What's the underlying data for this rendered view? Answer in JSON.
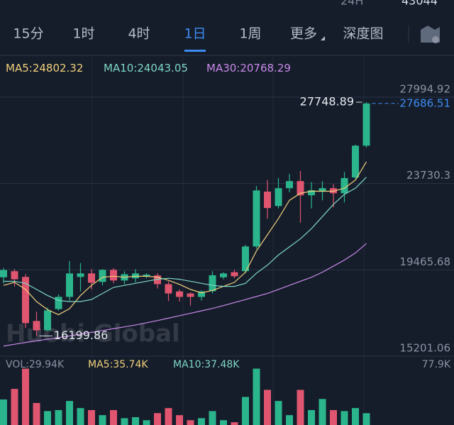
{
  "header": {
    "period_label": "24H",
    "period_value": "43044"
  },
  "tabs": [
    "15分",
    "1时",
    "4时",
    "1日",
    "1周",
    "更多",
    "深度图"
  ],
  "active_tab": 3,
  "watermark": "Huobi Global",
  "chart_data": {
    "type": "candlestick",
    "up_color": "#2bb58c",
    "down_color": "#e0556f",
    "open": [
      19100,
      19400,
      19115,
      16940,
      16480,
      17530,
      18130,
      19115,
      19290,
      18870,
      19466,
      18940,
      19050,
      19150,
      19190,
      18760,
      18400,
      18300,
      18130,
      18410,
      19100,
      19350,
      19400,
      20620,
      23330,
      22620,
      23500,
      23850,
      23150,
      23330,
      23500,
      23250,
      24030,
      25600
    ],
    "high": [
      19560,
      19500,
      19250,
      17400,
      17600,
      18250,
      19900,
      19800,
      19500,
      19500,
      19550,
      19400,
      19500,
      19300,
      19300,
      18900,
      18500,
      18350,
      18450,
      19400,
      19350,
      19470,
      20700,
      23600,
      23900,
      24000,
      24200,
      24350,
      23800,
      23850,
      23700,
      24300,
      25650,
      27748.89
    ],
    "low": [
      18800,
      18650,
      16600,
      16199.86,
      16450,
      17450,
      17950,
      18400,
      18500,
      18700,
      18800,
      18750,
      18850,
      19050,
      18550,
      17920,
      17900,
      17700,
      17950,
      18300,
      19000,
      19050,
      19300,
      20500,
      22000,
      22500,
      23300,
      21800,
      22500,
      22900,
      22550,
      22800,
      23950,
      25500
    ],
    "close": [
      19460,
      19000,
      16834,
      16480,
      17465,
      18132,
      19290,
      19290,
      18830,
      19466,
      18940,
      19250,
      19290,
      19230,
      18760,
      18300,
      18130,
      18130,
      18400,
      19200,
      19290,
      19150,
      20620,
      23390,
      22520,
      23500,
      23850,
      23150,
      23400,
      23500,
      23250,
      24000,
      25600,
      27686.51
    ],
    "ma": [
      {
        "name": "MA5:",
        "color": "#f0cf7a",
        "values": [
          18700,
          18850,
          18500,
          17900,
          17500,
          17250,
          17550,
          18200,
          18700,
          19100,
          19150,
          19100,
          19150,
          19150,
          19100,
          18950,
          18750,
          18500,
          18330,
          18450,
          18650,
          18850,
          19350,
          20400,
          21200,
          22000,
          22900,
          23250,
          23350,
          23350,
          23350,
          23500,
          23900,
          24802.32
        ]
      },
      {
        "name": "MA10:",
        "color": "#7ed6c4",
        "values": [
          18900,
          18900,
          18800,
          18500,
          18200,
          17950,
          17900,
          17900,
          18000,
          18300,
          18600,
          18700,
          18800,
          18900,
          19000,
          19050,
          19000,
          18900,
          18800,
          18700,
          18650,
          18650,
          18800,
          19300,
          19700,
          20200,
          20600,
          21000,
          21500,
          22100,
          22700,
          23200,
          23500,
          24043.05
        ]
      },
      {
        "name": "MA30:",
        "color": "#c989e8",
        "values": [
          15700,
          15790,
          15880,
          15960,
          16040,
          16120,
          16200,
          16290,
          16380,
          16470,
          16560,
          16650,
          16740,
          16850,
          16960,
          17080,
          17200,
          17320,
          17440,
          17560,
          17700,
          17850,
          18000,
          18150,
          18300,
          18500,
          18700,
          18900,
          19100,
          19350,
          19650,
          19950,
          20300,
          20768.29
        ]
      }
    ],
    "ylim": [
      15201.06,
      27994.92
    ],
    "yticks": [
      27994.92,
      23730.3,
      19465.68,
      15201.06
    ],
    "grid": true,
    "volume": [
      43.5,
      54,
      74,
      40,
      32,
      33,
      42,
      35,
      33,
      28,
      33,
      25,
      26,
      23,
      30,
      35,
      28,
      23,
      25,
      32,
      23,
      21,
      46,
      74,
      53,
      42,
      28,
      53,
      33,
      44,
      33,
      32,
      35,
      29.94
    ],
    "vol_ylim": [
      0,
      77.9
    ],
    "vol_yticks": [
      {
        "value": 77.9,
        "label": "77.9K"
      }
    ],
    "vol_legend": [
      {
        "text": "VOL:29.94K",
        "color": "#8b93a3"
      },
      {
        "text": "MA5:35.74K",
        "color": "#f0cf7a"
      },
      {
        "text": "MA10:37.48K",
        "color": "#7ed6c4"
      }
    ]
  }
}
